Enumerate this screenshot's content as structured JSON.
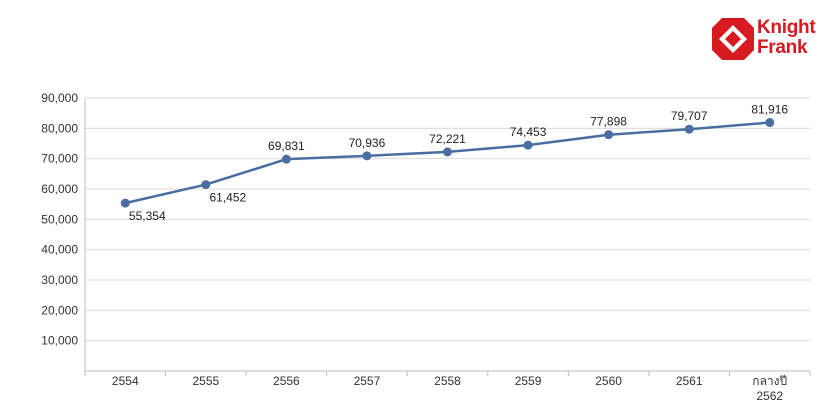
{
  "brand": {
    "line1": "Knight",
    "line2": "Frank",
    "color": "#d71920"
  },
  "chart_data": {
    "type": "line",
    "categories": [
      "2554",
      "2555",
      "2556",
      "2557",
      "2558",
      "2559",
      "2560",
      "2561",
      "กลางปี 2562"
    ],
    "category_lines": [
      [
        "2554"
      ],
      [
        "2555"
      ],
      [
        "2556"
      ],
      [
        "2557"
      ],
      [
        "2558"
      ],
      [
        "2559"
      ],
      [
        "2560"
      ],
      [
        "2561"
      ],
      [
        "กลางปี",
        "2562"
      ]
    ],
    "series": [
      {
        "values": [
          55354,
          61452,
          69831,
          70936,
          72221,
          74453,
          77898,
          79707,
          81916
        ],
        "labels": [
          "55,354",
          "61,452",
          "69,831",
          "70,936",
          "72,221",
          "74,453",
          "77,898",
          "79,707",
          "81,916"
        ],
        "label_positions": [
          "below",
          "below",
          "above",
          "above",
          "above",
          "above",
          "above",
          "above",
          "above"
        ],
        "color": "#4a6ea3"
      }
    ],
    "y_ticks": [
      10000,
      20000,
      30000,
      40000,
      50000,
      60000,
      70000,
      80000,
      90000
    ],
    "y_tick_labels": [
      "10,000",
      "20,000",
      "30,000",
      "40,000",
      "50,000",
      "60,000",
      "70,000",
      "80,000",
      "90,000"
    ],
    "ylim": [
      0,
      90000
    ],
    "grid": true,
    "title": "",
    "xlabel": "",
    "ylabel": ""
  }
}
